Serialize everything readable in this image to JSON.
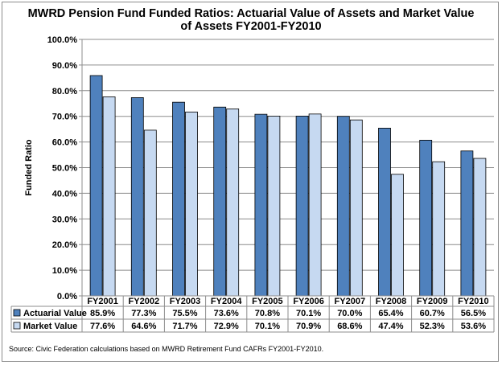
{
  "chart_data": {
    "type": "bar",
    "title_lines": [
      "MWRD Pension Fund Funded Ratios: Actuarial Value of Assets and Market Value",
      "of Assets FY2001-FY2010"
    ],
    "ylabel": "Funded Ratio",
    "ylim": [
      0,
      100
    ],
    "ytick_labels": [
      "0.0%",
      "10.0%",
      "20.0%",
      "30.0%",
      "40.0%",
      "50.0%",
      "60.0%",
      "70.0%",
      "80.0%",
      "90.0%",
      "100.0%"
    ],
    "categories": [
      "FY2001",
      "FY2002",
      "FY2003",
      "FY2004",
      "FY2005",
      "FY2006",
      "FY2007",
      "FY2008",
      "FY2009",
      "FY2010"
    ],
    "series": [
      {
        "name": "Actuarial Value",
        "color": "#4f81bd",
        "values": [
          85.9,
          77.3,
          75.5,
          73.6,
          70.8,
          70.1,
          70.0,
          65.4,
          60.7,
          56.5
        ],
        "labels": [
          "85.9%",
          "77.3%",
          "75.5%",
          "73.6%",
          "70.8%",
          "70.1%",
          "70.0%",
          "65.4%",
          "60.7%",
          "56.5%"
        ]
      },
      {
        "name": "Market Value",
        "color": "#c6d9f1",
        "values": [
          77.6,
          64.6,
          71.7,
          72.9,
          70.1,
          70.9,
          68.6,
          47.4,
          52.3,
          53.6
        ],
        "labels": [
          "77.6%",
          "64.6%",
          "71.7%",
          "72.9%",
          "70.1%",
          "70.9%",
          "68.6%",
          "47.4%",
          "52.3%",
          "53.6%"
        ]
      }
    ],
    "grid": true,
    "legend": "data-table",
    "source": "Source: Civic Federation calculations based on MWRD Retirement Fund CAFRs FY2001-FY2010."
  }
}
